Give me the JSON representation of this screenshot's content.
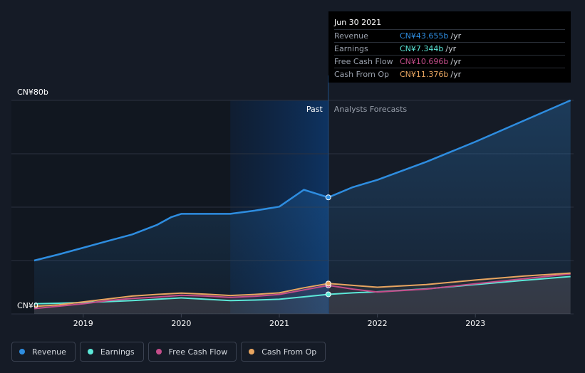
{
  "chart_data": {
    "type": "line",
    "y_axis": {
      "top_label": "CN¥80b",
      "bottom_label": "CN¥0",
      "ylim": [
        0,
        80
      ]
    },
    "x_ticks": [
      "2019",
      "2020",
      "2021",
      "2022",
      "2023"
    ],
    "past_label": "Past",
    "forecast_label": "Analysts Forecasts",
    "past_end": "2021.5",
    "highlight_start": "2020.5",
    "series": [
      {
        "name": "Revenue",
        "color": "#2e8de0",
        "points": [
          [
            2018.5,
            20
          ],
          [
            2018.75,
            22.3
          ],
          [
            2019,
            24.8
          ],
          [
            2019.25,
            27.3
          ],
          [
            2019.5,
            29.8
          ],
          [
            2019.75,
            33.3
          ],
          [
            2019.9,
            36.3
          ],
          [
            2020,
            37.5
          ],
          [
            2020.25,
            37.5
          ],
          [
            2020.5,
            37.5
          ],
          [
            2020.75,
            38.7
          ],
          [
            2021,
            40.2
          ],
          [
            2021.25,
            46.5
          ],
          [
            2021.5,
            43.655
          ],
          [
            2021.75,
            47.5
          ],
          [
            2022,
            50.2
          ],
          [
            2022.5,
            57
          ],
          [
            2023,
            64.5
          ],
          [
            2023.5,
            72.5
          ],
          [
            2023.97,
            80
          ]
        ]
      },
      {
        "name": "Earnings",
        "color": "#5ce8d8",
        "points": [
          [
            2018.5,
            3.8
          ],
          [
            2018.75,
            4
          ],
          [
            2019,
            4.3
          ],
          [
            2019.25,
            4.6
          ],
          [
            2019.5,
            5
          ],
          [
            2019.75,
            5.5
          ],
          [
            2020,
            6
          ],
          [
            2020.25,
            5.5
          ],
          [
            2020.5,
            5
          ],
          [
            2020.75,
            5.2
          ],
          [
            2021,
            5.5
          ],
          [
            2021.25,
            6.4
          ],
          [
            2021.5,
            7.344
          ],
          [
            2021.75,
            7.9
          ],
          [
            2022,
            8.3
          ],
          [
            2022.5,
            9.4
          ],
          [
            2023,
            11
          ],
          [
            2023.5,
            12.6
          ],
          [
            2023.97,
            14
          ]
        ]
      },
      {
        "name": "Free Cash Flow",
        "color": "#c44d8a",
        "points": [
          [
            2018.5,
            2
          ],
          [
            2018.75,
            2.9
          ],
          [
            2019,
            3.8
          ],
          [
            2019.25,
            5
          ],
          [
            2019.5,
            5.8
          ],
          [
            2019.75,
            6.3
          ],
          [
            2020,
            7
          ],
          [
            2020.25,
            6.7
          ],
          [
            2020.5,
            6.2
          ],
          [
            2020.75,
            6.6
          ],
          [
            2021,
            7.3
          ],
          [
            2021.25,
            9
          ],
          [
            2021.5,
            10.696
          ],
          [
            2021.75,
            9.3
          ],
          [
            2022,
            8.2
          ],
          [
            2022.5,
            9.3
          ],
          [
            2023,
            11.3
          ],
          [
            2023.5,
            13.2
          ],
          [
            2023.97,
            15
          ]
        ]
      },
      {
        "name": "Cash From Op",
        "color": "#e8a560",
        "points": [
          [
            2018.5,
            2.8
          ],
          [
            2018.75,
            3.4
          ],
          [
            2019,
            4.5
          ],
          [
            2019.25,
            5.6
          ],
          [
            2019.5,
            6.7
          ],
          [
            2019.75,
            7.3
          ],
          [
            2020,
            7.8
          ],
          [
            2020.25,
            7.4
          ],
          [
            2020.5,
            6.9
          ],
          [
            2020.75,
            7.3
          ],
          [
            2021,
            7.9
          ],
          [
            2021.25,
            9.8
          ],
          [
            2021.5,
            11.376
          ],
          [
            2021.75,
            10.7
          ],
          [
            2022,
            10
          ],
          [
            2022.5,
            11
          ],
          [
            2023,
            12.7
          ],
          [
            2023.5,
            14.2
          ],
          [
            2023.97,
            15.3
          ]
        ]
      }
    ]
  },
  "tooltip": {
    "date": "Jun 30 2021",
    "rows": [
      {
        "label": "Revenue",
        "value": "CN¥43.655b",
        "unit": "/yr",
        "color": "#2e8de0"
      },
      {
        "label": "Earnings",
        "value": "CN¥7.344b",
        "unit": "/yr",
        "color": "#5ce8d8"
      },
      {
        "label": "Free Cash Flow",
        "value": "CN¥10.696b",
        "unit": "/yr",
        "color": "#c44d8a"
      },
      {
        "label": "Cash From Op",
        "value": "CN¥11.376b",
        "unit": "/yr",
        "color": "#e8a560"
      }
    ]
  },
  "legend": [
    {
      "label": "Revenue",
      "color": "#2e8de0"
    },
    {
      "label": "Earnings",
      "color": "#5ce8d8"
    },
    {
      "label": "Free Cash Flow",
      "color": "#c44d8a"
    },
    {
      "label": "Cash From Op",
      "color": "#e8a560"
    }
  ]
}
